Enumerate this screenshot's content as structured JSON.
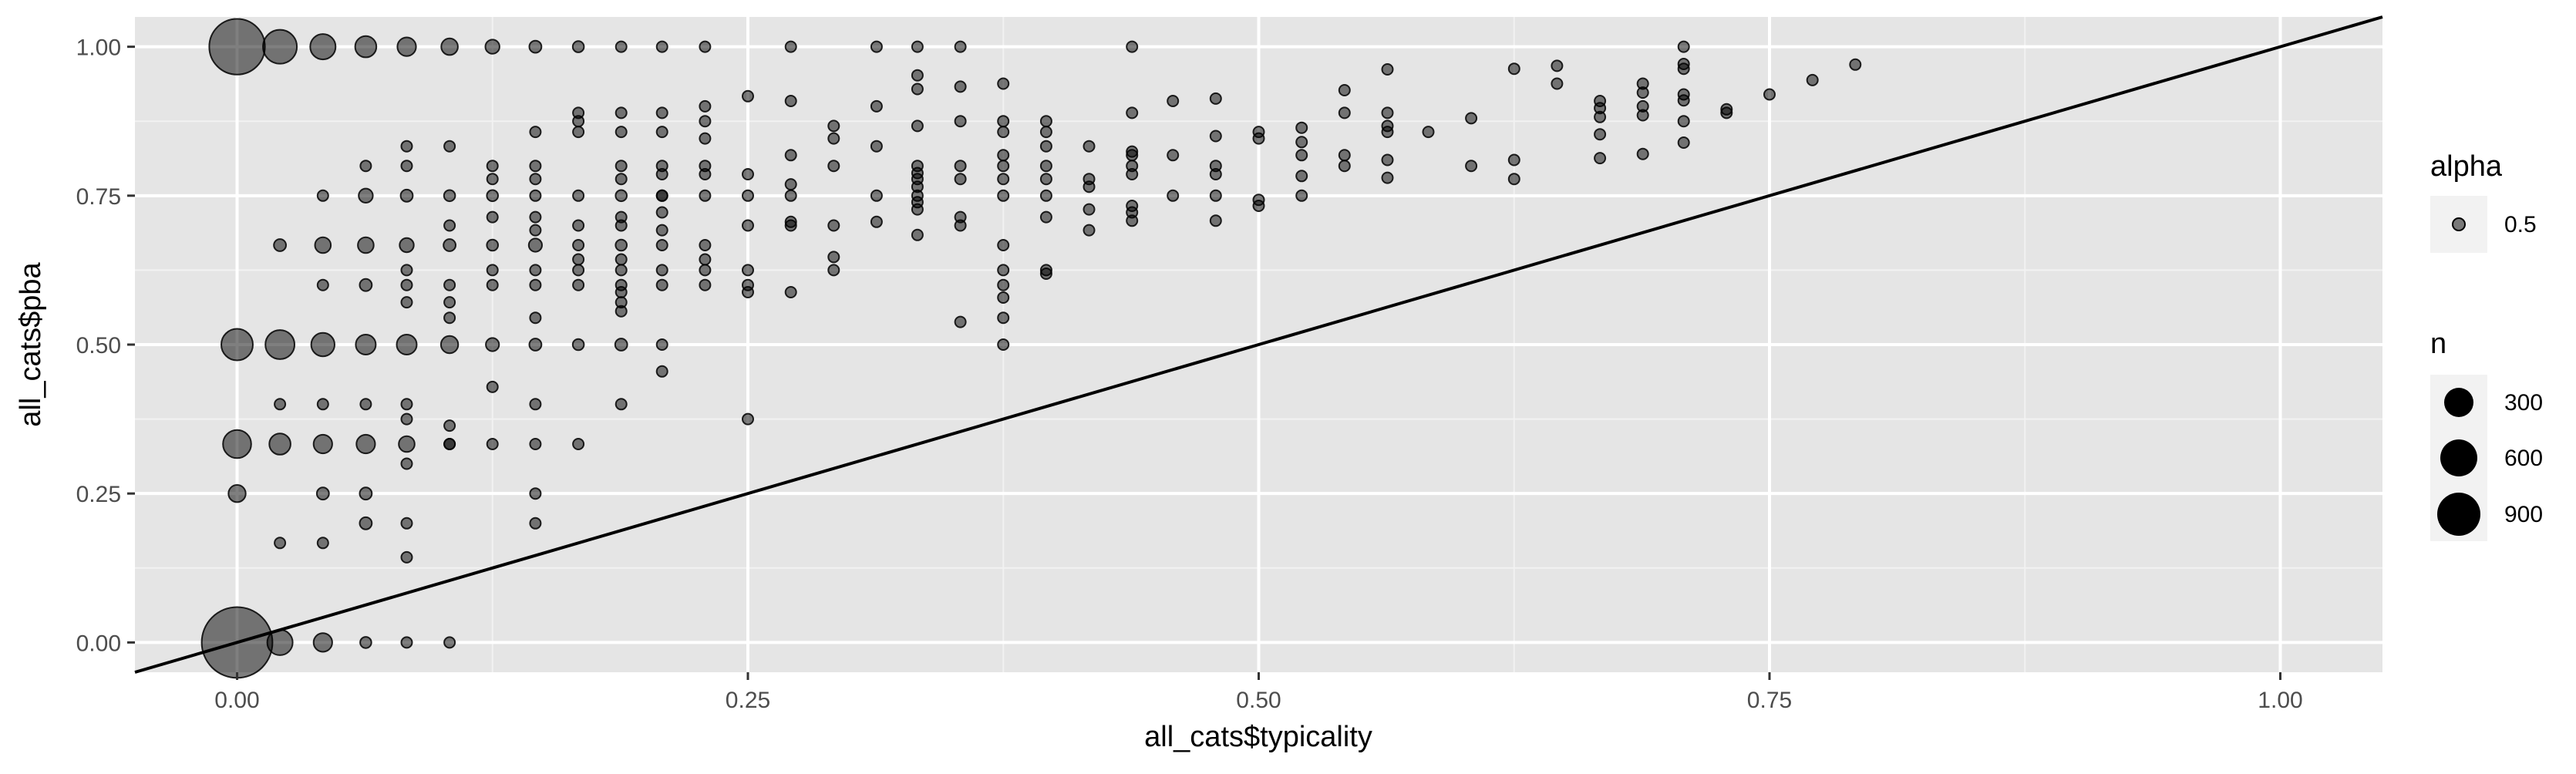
{
  "chart_data": {
    "type": "scatter",
    "xlabel": "all_cats$typicality",
    "ylabel": "all_cats$pba",
    "xlim": [
      -0.05,
      1.05
    ],
    "ylim": [
      -0.05,
      1.05
    ],
    "x_ticks": [
      0.0,
      0.25,
      0.5,
      0.75,
      1.0
    ],
    "x_tick_labels": [
      "0.00",
      "0.25",
      "0.50",
      "0.75",
      "1.00"
    ],
    "y_ticks": [
      0.0,
      0.25,
      0.5,
      0.75,
      1.0
    ],
    "y_tick_labels": [
      "0.00",
      "0.25",
      "0.50",
      "0.75",
      "1.00"
    ],
    "grid": true,
    "reference_line": {
      "slope": 1,
      "intercept": 0
    },
    "point_color": "#000000",
    "point_alpha": 0.5,
    "panel_background": "#e5e5e5",
    "legend_placement": "right",
    "legends": [
      {
        "title": "alpha",
        "entries": [
          {
            "label": "0.5",
            "n": 10
          }
        ]
      },
      {
        "title": "n",
        "entries": [
          {
            "label": "300",
            "n": 300
          },
          {
            "label": "600",
            "n": 600
          },
          {
            "label": "900",
            "n": 900
          }
        ]
      }
    ],
    "points": [
      [
        0.0,
        1.0,
        620
      ],
      [
        0.021,
        1.0,
        230
      ],
      [
        0.042,
        1.0,
        130
      ],
      [
        0.063,
        1.0,
        90
      ],
      [
        0.083,
        1.0,
        70
      ],
      [
        0.104,
        1.0,
        55
      ],
      [
        0.125,
        1.0,
        40
      ],
      [
        0.146,
        1.0,
        30
      ],
      [
        0.167,
        1.0,
        25
      ],
      [
        0.188,
        1.0,
        15
      ],
      [
        0.208,
        1.0,
        15
      ],
      [
        0.229,
        1.0,
        12
      ],
      [
        0.271,
        1.0,
        15
      ],
      [
        0.313,
        1.0,
        15
      ],
      [
        0.333,
        1.0,
        15
      ],
      [
        0.354,
        1.0,
        15
      ],
      [
        0.438,
        1.0,
        12
      ],
      [
        0.708,
        1.0,
        12
      ],
      [
        0.0,
        0.5,
        200
      ],
      [
        0.021,
        0.5,
        170
      ],
      [
        0.042,
        0.5,
        110
      ],
      [
        0.063,
        0.5,
        80
      ],
      [
        0.083,
        0.5,
        80
      ],
      [
        0.104,
        0.5,
        60
      ],
      [
        0.125,
        0.5,
        35
      ],
      [
        0.146,
        0.5,
        30
      ],
      [
        0.167,
        0.5,
        25
      ],
      [
        0.188,
        0.5,
        30
      ],
      [
        0.208,
        0.5,
        15
      ],
      [
        0.375,
        0.5,
        15
      ],
      [
        0.0,
        0.333,
        160
      ],
      [
        0.021,
        0.333,
        90
      ],
      [
        0.042,
        0.333,
        70
      ],
      [
        0.063,
        0.333,
        70
      ],
      [
        0.083,
        0.333,
        50
      ],
      [
        0.104,
        0.333,
        20
      ],
      [
        0.125,
        0.333,
        20
      ],
      [
        0.146,
        0.333,
        20
      ],
      [
        0.167,
        0.333,
        15
      ],
      [
        0.0,
        0.25,
        60
      ],
      [
        0.042,
        0.25,
        30
      ],
      [
        0.063,
        0.25,
        30
      ],
      [
        0.146,
        0.25,
        15
      ],
      [
        0.021,
        0.167,
        15
      ],
      [
        0.042,
        0.167,
        15
      ],
      [
        0.063,
        0.2,
        30
      ],
      [
        0.083,
        0.2,
        15
      ],
      [
        0.083,
        0.143,
        15
      ],
      [
        0.146,
        0.2,
        20
      ],
      [
        0.021,
        0.4,
        15
      ],
      [
        0.042,
        0.4,
        15
      ],
      [
        0.063,
        0.4,
        20
      ],
      [
        0.083,
        0.4,
        15
      ],
      [
        0.083,
        0.375,
        15
      ],
      [
        0.083,
        0.3,
        15
      ],
      [
        0.104,
        0.364,
        15
      ],
      [
        0.104,
        0.333,
        15
      ],
      [
        0.125,
        0.429,
        15
      ],
      [
        0.146,
        0.4,
        20
      ],
      [
        0.188,
        0.4,
        20
      ],
      [
        0.208,
        0.455,
        15
      ],
      [
        0.0,
        0.0,
        1000
      ],
      [
        0.021,
        0.0,
        130
      ],
      [
        0.042,
        0.0,
        70
      ],
      [
        0.063,
        0.0,
        25
      ],
      [
        0.083,
        0.0,
        20
      ],
      [
        0.104,
        0.0,
        15
      ],
      [
        0.021,
        0.667,
        30
      ],
      [
        0.042,
        0.667,
        50
      ],
      [
        0.063,
        0.667,
        50
      ],
      [
        0.083,
        0.667,
        40
      ],
      [
        0.104,
        0.667,
        30
      ],
      [
        0.125,
        0.667,
        25
      ],
      [
        0.146,
        0.667,
        35
      ],
      [
        0.167,
        0.667,
        20
      ],
      [
        0.188,
        0.667,
        25
      ],
      [
        0.208,
        0.667,
        15
      ],
      [
        0.229,
        0.667,
        15
      ],
      [
        0.042,
        0.75,
        20
      ],
      [
        0.063,
        0.75,
        40
      ],
      [
        0.083,
        0.75,
        30
      ],
      [
        0.104,
        0.75,
        25
      ],
      [
        0.125,
        0.75,
        25
      ],
      [
        0.146,
        0.75,
        20
      ],
      [
        0.167,
        0.75,
        15
      ],
      [
        0.188,
        0.75,
        25
      ],
      [
        0.208,
        0.75,
        15
      ],
      [
        0.229,
        0.75,
        15
      ],
      [
        0.25,
        0.75,
        15
      ],
      [
        0.271,
        0.75,
        15
      ],
      [
        0.042,
        0.6,
        15
      ],
      [
        0.063,
        0.6,
        30
      ],
      [
        0.083,
        0.6,
        20
      ],
      [
        0.083,
        0.571,
        15
      ],
      [
        0.104,
        0.6,
        15
      ],
      [
        0.104,
        0.571,
        15
      ],
      [
        0.125,
        0.6,
        15
      ],
      [
        0.146,
        0.6,
        20
      ],
      [
        0.167,
        0.6,
        15
      ],
      [
        0.188,
        0.6,
        15
      ],
      [
        0.208,
        0.6,
        15
      ],
      [
        0.229,
        0.6,
        15
      ],
      [
        0.083,
        0.625,
        15
      ],
      [
        0.104,
        0.545,
        15
      ],
      [
        0.125,
        0.625,
        15
      ],
      [
        0.146,
        0.625,
        15
      ],
      [
        0.146,
        0.545,
        15
      ],
      [
        0.167,
        0.625,
        15
      ],
      [
        0.188,
        0.625,
        15
      ],
      [
        0.188,
        0.556,
        15
      ],
      [
        0.188,
        0.571,
        15
      ],
      [
        0.208,
        0.625,
        15
      ],
      [
        0.229,
        0.625,
        15
      ],
      [
        0.25,
        0.625,
        15
      ],
      [
        0.063,
        0.8,
        15
      ],
      [
        0.083,
        0.833,
        20
      ],
      [
        0.083,
        0.8,
        15
      ],
      [
        0.104,
        0.833,
        15
      ],
      [
        0.104,
        0.7,
        15
      ],
      [
        0.125,
        0.8,
        15
      ],
      [
        0.125,
        0.778,
        15
      ],
      [
        0.125,
        0.714,
        15
      ],
      [
        0.146,
        0.857,
        15
      ],
      [
        0.146,
        0.8,
        15
      ],
      [
        0.146,
        0.778,
        15
      ],
      [
        0.146,
        0.714,
        15
      ],
      [
        0.146,
        0.692,
        15
      ],
      [
        0.167,
        0.889,
        15
      ],
      [
        0.167,
        0.875,
        15
      ],
      [
        0.167,
        0.857,
        15
      ],
      [
        0.167,
        0.7,
        15
      ],
      [
        0.167,
        0.643,
        15
      ],
      [
        0.188,
        0.889,
        15
      ],
      [
        0.188,
        0.857,
        15
      ],
      [
        0.188,
        0.8,
        15
      ],
      [
        0.188,
        0.778,
        15
      ],
      [
        0.188,
        0.714,
        15
      ],
      [
        0.188,
        0.7,
        15
      ],
      [
        0.188,
        0.643,
        15
      ],
      [
        0.188,
        0.588,
        15
      ],
      [
        0.208,
        0.889,
        15
      ],
      [
        0.208,
        0.857,
        15
      ],
      [
        0.208,
        0.8,
        15
      ],
      [
        0.208,
        0.786,
        15
      ],
      [
        0.208,
        0.75,
        15
      ],
      [
        0.208,
        0.722,
        15
      ],
      [
        0.208,
        0.692,
        15
      ],
      [
        0.229,
        0.9,
        15
      ],
      [
        0.229,
        0.875,
        15
      ],
      [
        0.229,
        0.846,
        15
      ],
      [
        0.229,
        0.8,
        15
      ],
      [
        0.229,
        0.786,
        15
      ],
      [
        0.229,
        0.643,
        15
      ],
      [
        0.25,
        0.917,
        15
      ],
      [
        0.25,
        0.786,
        15
      ],
      [
        0.25,
        0.7,
        15
      ],
      [
        0.25,
        0.6,
        15
      ],
      [
        0.25,
        0.588,
        15
      ],
      [
        0.25,
        0.375,
        15
      ],
      [
        0.271,
        0.909,
        15
      ],
      [
        0.271,
        0.818,
        15
      ],
      [
        0.271,
        0.769,
        15
      ],
      [
        0.271,
        0.706,
        15
      ],
      [
        0.271,
        0.7,
        15
      ],
      [
        0.271,
        0.588,
        15
      ],
      [
        0.292,
        0.867,
        15
      ],
      [
        0.292,
        0.846,
        15
      ],
      [
        0.292,
        0.8,
        15
      ],
      [
        0.292,
        0.7,
        15
      ],
      [
        0.292,
        0.647,
        15
      ],
      [
        0.292,
        0.625,
        15
      ],
      [
        0.313,
        0.9,
        15
      ],
      [
        0.313,
        0.833,
        15
      ],
      [
        0.313,
        0.75,
        15
      ],
      [
        0.313,
        0.706,
        15
      ],
      [
        0.333,
        0.952,
        15
      ],
      [
        0.333,
        0.929,
        15
      ],
      [
        0.333,
        0.867,
        15
      ],
      [
        0.333,
        0.8,
        15
      ],
      [
        0.333,
        0.788,
        15
      ],
      [
        0.333,
        0.778,
        15
      ],
      [
        0.333,
        0.765,
        15
      ],
      [
        0.333,
        0.75,
        15
      ],
      [
        0.333,
        0.739,
        15
      ],
      [
        0.333,
        0.727,
        15
      ],
      [
        0.333,
        0.684,
        15
      ],
      [
        0.354,
        0.933,
        15
      ],
      [
        0.354,
        0.875,
        15
      ],
      [
        0.354,
        0.8,
        15
      ],
      [
        0.354,
        0.778,
        15
      ],
      [
        0.354,
        0.714,
        15
      ],
      [
        0.354,
        0.7,
        15
      ],
      [
        0.354,
        0.538,
        15
      ],
      [
        0.375,
        0.938,
        15
      ],
      [
        0.375,
        0.875,
        15
      ],
      [
        0.375,
        0.857,
        15
      ],
      [
        0.375,
        0.818,
        15
      ],
      [
        0.375,
        0.8,
        15
      ],
      [
        0.375,
        0.778,
        15
      ],
      [
        0.375,
        0.75,
        15
      ],
      [
        0.375,
        0.667,
        15
      ],
      [
        0.375,
        0.625,
        15
      ],
      [
        0.375,
        0.6,
        15
      ],
      [
        0.375,
        0.579,
        15
      ],
      [
        0.375,
        0.545,
        15
      ],
      [
        0.396,
        0.875,
        15
      ],
      [
        0.396,
        0.857,
        15
      ],
      [
        0.396,
        0.833,
        15
      ],
      [
        0.396,
        0.8,
        15
      ],
      [
        0.396,
        0.778,
        15
      ],
      [
        0.396,
        0.75,
        15
      ],
      [
        0.396,
        0.714,
        15
      ],
      [
        0.396,
        0.625,
        15
      ],
      [
        0.396,
        0.619,
        15
      ],
      [
        0.417,
        0.833,
        15
      ],
      [
        0.417,
        0.778,
        15
      ],
      [
        0.417,
        0.765,
        15
      ],
      [
        0.417,
        0.727,
        15
      ],
      [
        0.417,
        0.692,
        15
      ],
      [
        0.438,
        0.889,
        15
      ],
      [
        0.438,
        0.824,
        15
      ],
      [
        0.438,
        0.818,
        15
      ],
      [
        0.438,
        0.8,
        15
      ],
      [
        0.438,
        0.786,
        15
      ],
      [
        0.438,
        0.733,
        15
      ],
      [
        0.438,
        0.722,
        15
      ],
      [
        0.438,
        0.708,
        15
      ],
      [
        0.458,
        0.909,
        15
      ],
      [
        0.458,
        0.818,
        15
      ],
      [
        0.458,
        0.75,
        15
      ],
      [
        0.479,
        0.913,
        15
      ],
      [
        0.479,
        0.85,
        15
      ],
      [
        0.479,
        0.8,
        15
      ],
      [
        0.479,
        0.786,
        15
      ],
      [
        0.479,
        0.75,
        15
      ],
      [
        0.479,
        0.708,
        15
      ],
      [
        0.5,
        0.857,
        15
      ],
      [
        0.5,
        0.846,
        15
      ],
      [
        0.5,
        0.743,
        15
      ],
      [
        0.5,
        0.733,
        15
      ],
      [
        0.521,
        0.864,
        15
      ],
      [
        0.521,
        0.84,
        15
      ],
      [
        0.521,
        0.818,
        15
      ],
      [
        0.521,
        0.783,
        15
      ],
      [
        0.521,
        0.75,
        15
      ],
      [
        0.542,
        0.927,
        15
      ],
      [
        0.542,
        0.889,
        15
      ],
      [
        0.542,
        0.818,
        15
      ],
      [
        0.542,
        0.8,
        15
      ],
      [
        0.563,
        0.962,
        15
      ],
      [
        0.563,
        0.889,
        15
      ],
      [
        0.563,
        0.867,
        15
      ],
      [
        0.563,
        0.857,
        15
      ],
      [
        0.563,
        0.81,
        15
      ],
      [
        0.563,
        0.78,
        15
      ],
      [
        0.583,
        0.857,
        15
      ],
      [
        0.604,
        0.88,
        15
      ],
      [
        0.604,
        0.8,
        15
      ],
      [
        0.625,
        0.963,
        15
      ],
      [
        0.625,
        0.81,
        15
      ],
      [
        0.625,
        0.778,
        15
      ],
      [
        0.646,
        0.968,
        15
      ],
      [
        0.646,
        0.938,
        15
      ],
      [
        0.667,
        0.909,
        15
      ],
      [
        0.667,
        0.897,
        15
      ],
      [
        0.667,
        0.882,
        15
      ],
      [
        0.667,
        0.853,
        15
      ],
      [
        0.667,
        0.813,
        15
      ],
      [
        0.688,
        0.938,
        15
      ],
      [
        0.688,
        0.923,
        15
      ],
      [
        0.688,
        0.9,
        15
      ],
      [
        0.688,
        0.885,
        15
      ],
      [
        0.688,
        0.82,
        15
      ],
      [
        0.708,
        0.971,
        15
      ],
      [
        0.708,
        0.963,
        15
      ],
      [
        0.708,
        0.92,
        15
      ],
      [
        0.708,
        0.91,
        15
      ],
      [
        0.708,
        0.875,
        15
      ],
      [
        0.708,
        0.839,
        15
      ],
      [
        0.729,
        0.895,
        15
      ],
      [
        0.729,
        0.889,
        15
      ],
      [
        0.75,
        0.92,
        15
      ],
      [
        0.771,
        0.944,
        15
      ],
      [
        0.792,
        0.97,
        15
      ]
    ]
  }
}
